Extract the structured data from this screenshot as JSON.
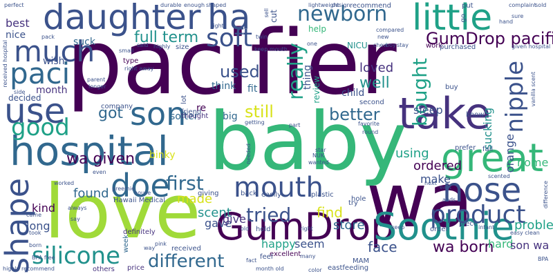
{
  "colors": {
    "background": "#ffffff",
    "dark_purple": "#440154",
    "purple": "#46327e",
    "indigo": "#3b528b",
    "blue": "#31688e",
    "teal_blue": "#277f8e",
    "teal": "#21918c",
    "green_teal": "#1fa187",
    "green": "#35b779",
    "light_green": "#6ece58",
    "lime": "#a0da39",
    "yellow": "#d8e219"
  },
  "words": [
    {
      "text": "pacifier",
      "color": "#440154"
    },
    {
      "text": "baby",
      "color": "#35b779"
    },
    {
      "text": "wa",
      "color": "#440154"
    },
    {
      "text": "love",
      "color": "#a0da39"
    },
    {
      "text": "hospital",
      "color": "#31688e"
    },
    {
      "text": "daughter",
      "color": "#3b528b"
    },
    {
      "text": "ha",
      "color": "#3b528b"
    },
    {
      "text": "little",
      "color": "#1fa187"
    },
    {
      "text": "GumDrop",
      "color": "#440154"
    },
    {
      "text": "Soothie",
      "color": "#21918c"
    },
    {
      "text": "take",
      "color": "#46327e"
    },
    {
      "text": "great",
      "color": "#35b779"
    },
    {
      "text": "mouth",
      "color": "#3b528b"
    },
    {
      "text": "doe",
      "color": "#31688e"
    },
    {
      "text": "son",
      "color": "#31688e"
    },
    {
      "text": "use",
      "color": "#3b528b"
    },
    {
      "text": "nose",
      "color": "#3b528b"
    },
    {
      "text": "paci",
      "color": "#31688e"
    },
    {
      "text": "much",
      "color": "#3b528b"
    },
    {
      "text": "shape",
      "color": "#3b528b"
    },
    {
      "text": "silicone",
      "color": "#21918c"
    },
    {
      "text": "product",
      "color": "#3b528b"
    },
    {
      "text": "nipple",
      "color": "#3b528b"
    },
    {
      "text": "good",
      "color": "#1fa187"
    },
    {
      "text": "soft",
      "color": "#3b528b"
    },
    {
      "text": "newborn",
      "color": "#31688e"
    },
    {
      "text": "first",
      "color": "#31688e"
    },
    {
      "text": "tried",
      "color": "#3b528b"
    },
    {
      "text": "different",
      "color": "#31688e"
    },
    {
      "text": "GumDrop pacifier",
      "color": "#440154"
    },
    {
      "text": "really",
      "color": "#1fa187"
    },
    {
      "text": "bought",
      "color": "#1fa187"
    },
    {
      "text": "used",
      "color": "#3b528b"
    },
    {
      "text": "still",
      "color": "#d8e219"
    },
    {
      "text": "better",
      "color": "#31688e"
    },
    {
      "text": "full term",
      "color": "#21918c"
    },
    {
      "text": "got",
      "color": "#31688e"
    },
    {
      "text": "well",
      "color": "#21918c"
    },
    {
      "text": "loved",
      "color": "#46327e"
    },
    {
      "text": "wa given",
      "color": "#440154"
    },
    {
      "text": "wa born",
      "color": "#440154"
    },
    {
      "text": "found",
      "color": "#31688e"
    },
    {
      "text": "find",
      "color": "#d8e219"
    },
    {
      "text": "store",
      "color": "#31688e"
    },
    {
      "text": "face",
      "color": "#3b528b"
    },
    {
      "text": "ordered",
      "color": "#440154"
    },
    {
      "text": "problem",
      "color": "#1fa187"
    },
    {
      "text": "make",
      "color": "#3b528b"
    },
    {
      "text": "scent",
      "color": "#21918c"
    },
    {
      "text": "made",
      "color": "#d8e219"
    },
    {
      "text": "gave",
      "color": "#3b528b"
    },
    {
      "text": "give",
      "color": "#46327e"
    },
    {
      "text": "happy",
      "color": "#1fa187"
    },
    {
      "text": "seem",
      "color": "#3b528b"
    },
    {
      "text": "hard",
      "color": "#35b779"
    },
    {
      "text": "son wa",
      "color": "#46327e"
    },
    {
      "text": "using",
      "color": "#1fa187"
    },
    {
      "text": "sleep",
      "color": "#3b528b"
    },
    {
      "text": "orange",
      "color": "#3b528b"
    },
    {
      "text": "sucking",
      "color": "#21918c"
    },
    {
      "text": "home",
      "color": "#35b779"
    },
    {
      "text": "kind",
      "color": "#440154"
    },
    {
      "text": "long",
      "color": "#3b528b"
    },
    {
      "text": "month",
      "color": "#46327e"
    },
    {
      "text": "best",
      "color": "#46327e"
    },
    {
      "text": "nice",
      "color": "#3b528b"
    },
    {
      "text": "suck",
      "color": "#31688e"
    },
    {
      "text": "wish",
      "color": "#3b528b"
    },
    {
      "text": "think",
      "color": "#31688e"
    },
    {
      "text": "fit",
      "color": "#31688e"
    },
    {
      "text": "big",
      "color": "#31688e"
    },
    {
      "text": "re",
      "color": "#440154"
    },
    {
      "text": "binky",
      "color": "#d8e219"
    },
    {
      "text": "softer",
      "color": "#31688e"
    },
    {
      "text": "child",
      "color": "#3b528b"
    },
    {
      "text": "help",
      "color": "#35b779"
    },
    {
      "text": "NICU",
      "color": "#21918c"
    },
    {
      "text": "cut",
      "color": "#3b528b"
    },
    {
      "text": "thing",
      "color": "#3b528b"
    },
    {
      "text": "review",
      "color": "#1fa187"
    },
    {
      "text": "decided",
      "color": "#3b528b"
    },
    {
      "text": "size",
      "color": "#3b528b"
    },
    {
      "text": "Hawaii Medical",
      "color": "#3b528b"
    },
    {
      "text": "friend",
      "color": "#3b528b"
    },
    {
      "text": "thought",
      "color": "#46327e"
    },
    {
      "text": "lot",
      "color": "#3b528b"
    },
    {
      "text": "type",
      "color": "#440154"
    },
    {
      "text": "company",
      "color": "#3b528b"
    },
    {
      "text": "definitely",
      "color": "#46327e"
    },
    {
      "text": "week",
      "color": "#31688e"
    },
    {
      "text": "received",
      "color": "#3b528b"
    },
    {
      "text": "others",
      "color": "#46327e"
    },
    {
      "text": "price",
      "color": "#46327e"
    },
    {
      "text": "excellent",
      "color": "#440154"
    },
    {
      "text": "second",
      "color": "#3b528b"
    },
    {
      "text": "prefer",
      "color": "#3b528b"
    },
    {
      "text": "fall",
      "color": "#3b528b"
    },
    {
      "text": "piece",
      "color": "#3b528b"
    },
    {
      "text": "order",
      "color": "#3b528b"
    },
    {
      "text": "feel",
      "color": "#3b528b"
    },
    {
      "text": "hold",
      "color": "#3b528b"
    },
    {
      "text": "plastic",
      "color": "#3b528b"
    },
    {
      "text": "giving",
      "color": "#3b528b"
    },
    {
      "text": "back",
      "color": "#3b528b"
    },
    {
      "text": "easily",
      "color": "#3b528b"
    },
    {
      "text": "hole",
      "color": "#3b528b"
    },
    {
      "text": "try",
      "color": "#3b528b"
    },
    {
      "text": "MAM",
      "color": "#3b528b"
    },
    {
      "text": "eastfeeding",
      "color": "#3b528b"
    },
    {
      "text": "buy",
      "color": "#3b528b"
    },
    {
      "text": "know",
      "color": "#3b528b"
    },
    {
      "text": "work",
      "color": "#440154"
    },
    {
      "text": "purchased",
      "color": "#3b528b"
    },
    {
      "text": "recommend",
      "color": "#3b528b"
    },
    {
      "text": "put",
      "color": "#3b528b"
    },
    {
      "text": "go",
      "color": "#3b528b"
    },
    {
      "text": "one",
      "color": "#3b528b"
    },
    {
      "text": "new",
      "color": "#3b528b"
    },
    {
      "text": "sure",
      "color": "#3b528b"
    },
    {
      "text": "hand",
      "color": "#3b528b"
    },
    {
      "text": "vanilla scent",
      "color": "#3b528b"
    },
    {
      "text": "given hospital",
      "color": "#3b528b"
    },
    {
      "text": "keep mouth",
      "color": "#3b528b"
    },
    {
      "text": "received hospital",
      "color": "#3b528b"
    },
    {
      "text": "difference",
      "color": "#3b528b"
    },
    {
      "text": "easy clean",
      "color": "#3b528b"
    },
    {
      "text": "infant",
      "color": "#3b528b"
    },
    {
      "text": "highly recommend",
      "color": "#3b528b"
    },
    {
      "text": "BPA free",
      "color": "#3b528b"
    },
    {
      "text": "perfect",
      "color": "#3b528b"
    },
    {
      "text": "pack",
      "color": "#3b528b"
    },
    {
      "text": "side",
      "color": "#3b528b"
    },
    {
      "text": "parent",
      "color": "#3b528b"
    },
    {
      "text": "longer",
      "color": "#3b528b"
    },
    {
      "text": "right away",
      "color": "#3b528b"
    },
    {
      "text": "said",
      "color": "#3b528b"
    },
    {
      "text": "small",
      "color": "#3b528b"
    },
    {
      "text": "highly",
      "color": "#3b528b"
    },
    {
      "text": "durable",
      "color": "#3b528b"
    },
    {
      "text": "enough",
      "color": "#3b528b"
    },
    {
      "text": "shaped",
      "color": "#3b528b"
    },
    {
      "text": "lightweight",
      "color": "#3b528b"
    },
    {
      "text": "design",
      "color": "#3b528b"
    },
    {
      "text": "compared",
      "color": "#3b528b"
    },
    {
      "text": "chew",
      "color": "#3b528b"
    },
    {
      "text": "boy",
      "color": "#3b528b"
    },
    {
      "text": "stay",
      "color": "#3b528b"
    },
    {
      "text": "twin",
      "color": "#3b528b"
    },
    {
      "text": "sell",
      "color": "#3b528b"
    },
    {
      "text": "star",
      "color": "#3b528b"
    },
    {
      "text": "NUK",
      "color": "#3b528b"
    },
    {
      "text": "wanted",
      "color": "#3b528b"
    },
    {
      "text": "part",
      "color": "#3b528b"
    },
    {
      "text": "getting",
      "color": "#3b528b"
    },
    {
      "text": "needed",
      "color": "#3b528b"
    },
    {
      "text": "round",
      "color": "#3b528b"
    },
    {
      "text": "favorite",
      "color": "#3b528b"
    },
    {
      "text": "next",
      "color": "#3b528b"
    },
    {
      "text": "east",
      "color": "#3b528b"
    },
    {
      "text": "ands",
      "color": "#3b528b"
    },
    {
      "text": "scented",
      "color": "#3b528b"
    },
    {
      "text": "came",
      "color": "#3b528b"
    },
    {
      "text": "say",
      "color": "#3b528b"
    },
    {
      "text": "took",
      "color": "#3b528b"
    },
    {
      "text": "born",
      "color": "#3b528b"
    },
    {
      "text": "worked",
      "color": "#3b528b"
    },
    {
      "text": "always",
      "color": "#3b528b"
    },
    {
      "text": "even",
      "color": "#3b528b"
    },
    {
      "text": "preemie",
      "color": "#3b528b"
    },
    {
      "text": "house",
      "color": "#3b528b"
    },
    {
      "text": "way",
      "color": "#3b528b"
    },
    {
      "text": "pink",
      "color": "#3b528b"
    },
    {
      "text": "fact",
      "color": "#3b528b"
    },
    {
      "text": "month old",
      "color": "#3b528b"
    },
    {
      "text": "color",
      "color": "#3b528b"
    },
    {
      "text": "many",
      "color": "#3b528b"
    },
    {
      "text": "old",
      "color": "#3b528b"
    },
    {
      "text": "right",
      "color": "#3b528b"
    },
    {
      "text": "keep",
      "color": "#3b528b"
    },
    {
      "text": "complaint",
      "color": "#3b528b"
    },
    {
      "text": "sold",
      "color": "#3b528b"
    },
    {
      "text": "BPA",
      "color": "#3b528b"
    },
    {
      "text": "light",
      "color": "#3b528b"
    }
  ]
}
